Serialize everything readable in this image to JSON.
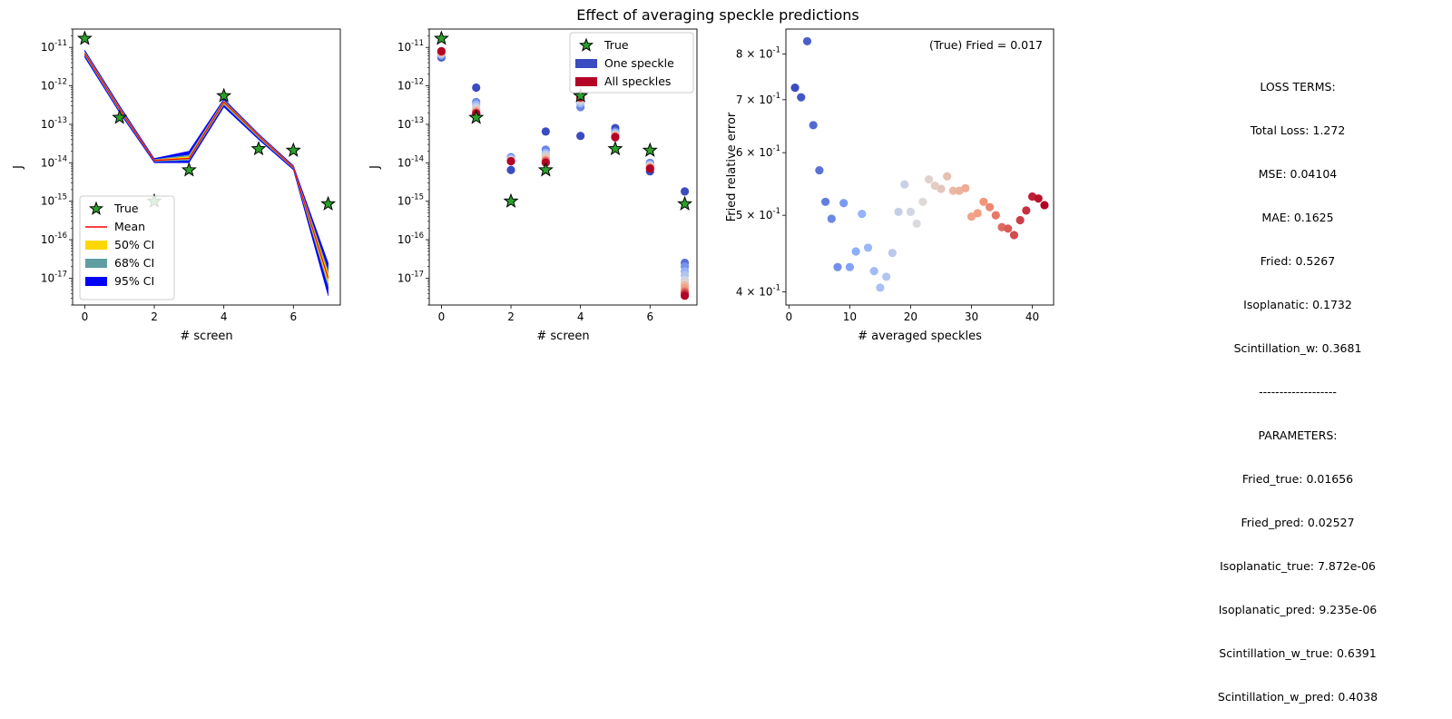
{
  "figure": {
    "title": "Effect of averaging speckle predictions"
  },
  "chart_data": [
    {
      "type": "line",
      "xlabel": "# screen",
      "ylabel": "J",
      "yscale": "log",
      "ylim": [
        2e-18,
        3e-11
      ],
      "xlim": [
        -0.35,
        7.35
      ],
      "xticks": [
        0,
        2,
        4,
        6
      ],
      "yticks": [
        1e-17,
        1e-16,
        1e-15,
        1e-14,
        1e-13,
        1e-12,
        1e-11
      ],
      "ytick_labels": [
        "10",
        "10",
        "10",
        "10",
        "10",
        "10",
        "10"
      ],
      "ytick_exponents": [
        "-17",
        "-16",
        "-15",
        "-14",
        "-13",
        "-12",
        "-11"
      ],
      "legend_position": "lower-left",
      "true": {
        "name": "True",
        "x": [
          0,
          1,
          2,
          3,
          4,
          5,
          6,
          7
        ],
        "y": [
          1.7e-11,
          1.5e-13,
          1e-15,
          6.5e-15,
          5.5e-13,
          2.3e-14,
          2.1e-14,
          8.5e-16
        ]
      },
      "mean": {
        "name": "Mean",
        "x": [
          0,
          1,
          2,
          3,
          4,
          5,
          6,
          7
        ],
        "y": [
          7e-12,
          2.5e-13,
          1.15e-14,
          1.3e-14,
          3.8e-13,
          5e-14,
          7.5e-15,
          1e-17
        ]
      },
      "bands": [
        {
          "name": "95% CI",
          "color": "#0000ff",
          "lower": [
            5.5e-12,
            2e-13,
            1e-14,
            1e-14,
            2.8e-13,
            4e-14,
            6.5e-15,
            3.5e-18
          ],
          "upper": [
            8.5e-12,
            3.1e-13,
            1.3e-14,
            2e-14,
            4.6e-13,
            5.7e-14,
            8.5e-15,
            2.5e-17
          ]
        },
        {
          "name": "68% CI",
          "color": "#5f9ea0",
          "lower": [
            6.2e-12,
            2.2e-13,
            1.08e-14,
            1.15e-14,
            3.2e-13,
            4.4e-14,
            7e-15,
            6e-18
          ],
          "upper": [
            7.8e-12,
            2.8e-13,
            1.22e-14,
            1.6e-14,
            4.2e-13,
            5.4e-14,
            8e-15,
            1.6e-17
          ]
        },
        {
          "name": "50% CI",
          "color": "#ffd700",
          "lower": [
            6.6e-12,
            2.35e-13,
            1.12e-14,
            1.25e-14,
            3.5e-13,
            4.7e-14,
            7.2e-15,
            7.5e-18
          ],
          "upper": [
            7.4e-12,
            2.65e-13,
            1.18e-14,
            1.45e-14,
            4e-13,
            5.2e-14,
            7.8e-15,
            1.3e-17
          ]
        }
      ],
      "legend": [
        "True",
        "Mean",
        "50% CI",
        "68% CI",
        "95% CI"
      ]
    },
    {
      "type": "scatter",
      "xlabel": "# screen",
      "ylabel": "J",
      "yscale": "log",
      "ylim": [
        2e-18,
        3e-11
      ],
      "xlim": [
        -0.35,
        7.35
      ],
      "xticks": [
        0,
        2,
        4,
        6
      ],
      "yticks": [
        1e-17,
        1e-16,
        1e-15,
        1e-14,
        1e-13,
        1e-12,
        1e-11
      ],
      "ytick_labels": [
        "10",
        "10",
        "10",
        "10",
        "10",
        "10",
        "10"
      ],
      "ytick_exponents": [
        "-17",
        "-16",
        "-15",
        "-14",
        "-13",
        "-12",
        "-11"
      ],
      "legend_position": "top-right",
      "legend": [
        "True",
        "One speckle",
        "All speckles"
      ],
      "colors": {
        "one": "#3b4cc0",
        "all": "#b40426"
      },
      "true": {
        "name": "True",
        "x": [
          0,
          1,
          2,
          3,
          4,
          5,
          6,
          7
        ],
        "y": [
          1.7e-11,
          1.5e-13,
          1e-15,
          6.5e-15,
          5.5e-13,
          2.3e-14,
          2.1e-14,
          8.5e-16
        ]
      },
      "speckles": [
        {
          "x": 0,
          "y": [
            5.5e-12,
            6e-12,
            6.5e-12,
            7e-12,
            7.2e-12,
            7.5e-12,
            7.8e-12,
            8e-12
          ]
        },
        {
          "x": 1,
          "y": [
            9e-13,
            3.8e-13,
            3.3e-13,
            2.8e-13,
            2.4e-13,
            2.2e-13,
            2e-13,
            1.9e-13
          ]
        },
        {
          "x": 2,
          "y": [
            6.5e-15,
            1.4e-14,
            1.3e-14,
            1.2e-14,
            1.15e-14,
            1.1e-14,
            1.1e-14,
            1.1e-14
          ]
        },
        {
          "x": 3,
          "y": [
            6.5e-14,
            2.2e-14,
            1.8e-14,
            1.6e-14,
            1.4e-14,
            1.2e-14,
            1.1e-14,
            1e-14
          ]
        },
        {
          "x": 4,
          "y": [
            5e-14,
            2.8e-13,
            3.5e-13,
            4e-13,
            4.5e-13,
            4.8e-13,
            5e-13,
            5e-13
          ]
        },
        {
          "x": 5,
          "y": [
            8e-14,
            6.5e-14,
            6e-14,
            5.5e-14,
            5.2e-14,
            5e-14,
            4.8e-14,
            4.6e-14
          ]
        },
        {
          "x": 6,
          "y": [
            6e-15,
            1e-14,
            9e-15,
            8.5e-15,
            8e-15,
            7.6e-15,
            7.3e-15,
            7e-15
          ]
        },
        {
          "x": 7,
          "y": [
            1.8e-15,
            2.5e-17,
            2e-17,
            1.5e-17,
            1.2e-17,
            9e-18,
            7.5e-18,
            6.5e-18,
            5.5e-18,
            4.5e-18,
            4e-18,
            3.5e-18
          ]
        }
      ]
    },
    {
      "type": "scatter",
      "xlabel": "# averaged speckles",
      "ylabel": "Fried relative error",
      "yscale": "log",
      "ylim": [
        0.385,
        0.86
      ],
      "xlim": [
        -0.5,
        43.5
      ],
      "xticks": [
        0,
        10,
        20,
        30,
        40
      ],
      "yticks": [
        0.4,
        0.5,
        0.6,
        0.7,
        0.8
      ],
      "ytick_labels": [
        "4 × 10",
        "5 × 10",
        "6 × 10",
        "7 × 10",
        "8 × 10"
      ],
      "ytick_exponents": [
        "-1",
        "-1",
        "-1",
        "-1",
        "-1"
      ],
      "annotation": "(True) Fried = 0.017",
      "colormap": [
        "#3b4cc0",
        "#8db0fe",
        "#dddddd",
        "#f49a7b",
        "#b40426"
      ],
      "x": [
        1,
        2,
        3,
        4,
        5,
        6,
        7,
        8,
        9,
        10,
        11,
        12,
        13,
        14,
        15,
        16,
        17,
        18,
        19,
        20,
        21,
        22,
        23,
        24,
        25,
        26,
        27,
        28,
        29,
        30,
        31,
        32,
        33,
        34,
        35,
        36,
        37,
        38,
        39,
        40,
        41,
        42
      ],
      "y": [
        0.725,
        0.705,
        0.83,
        0.65,
        0.57,
        0.52,
        0.495,
        0.43,
        0.518,
        0.43,
        0.45,
        0.502,
        0.455,
        0.425,
        0.405,
        0.418,
        0.448,
        0.505,
        0.547,
        0.505,
        0.488,
        0.52,
        0.555,
        0.545,
        0.54,
        0.56,
        0.537,
        0.537,
        0.541,
        0.498,
        0.503,
        0.52,
        0.512,
        0.5,
        0.483,
        0.481,
        0.472,
        0.493,
        0.507,
        0.528,
        0.525,
        0.515
      ]
    }
  ],
  "loss_terms": {
    "header": "LOSS TERMS:",
    "lines": [
      "Total Loss: 1.272",
      "MSE: 0.04104",
      "MAE: 0.1625",
      "Fried: 0.5267",
      "Isoplanatic: 0.1732",
      "Scintillation_w: 0.3681",
      "-------------------",
      "PARAMETERS:",
      "Fried_true: 0.01656",
      "Fried_pred: 0.02527",
      "Isoplanatic_true: 7.872e-06",
      "Isoplanatic_pred: 9.235e-06",
      "Scintillation_w_true: 0.6391",
      "Scintillation_w_pred: 0.4038"
    ]
  }
}
